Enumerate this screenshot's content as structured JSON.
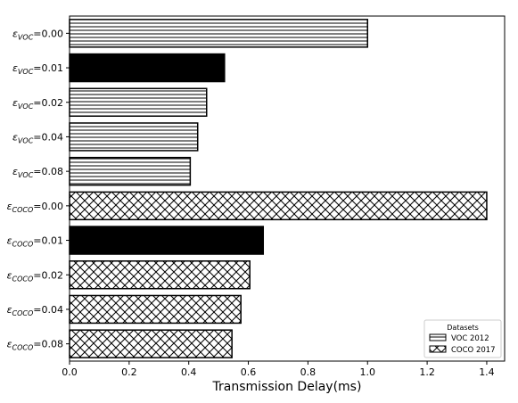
{
  "chart_data": {
    "type": "bar",
    "orientation": "horizontal",
    "categories": [
      {
        "base": "ε",
        "sub": "VOC",
        "value_text": "=0.00"
      },
      {
        "base": "ε",
        "sub": "VOC",
        "value_text": "=0.01"
      },
      {
        "base": "ε",
        "sub": "VOC",
        "value_text": "=0.02"
      },
      {
        "base": "ε",
        "sub": "VOC",
        "value_text": "=0.04"
      },
      {
        "base": "ε",
        "sub": "VOC",
        "value_text": "=0.08"
      },
      {
        "base": "ε",
        "sub": "COCO",
        "value_text": "=0.00"
      },
      {
        "base": "ε",
        "sub": "COCO",
        "value_text": "=0.01"
      },
      {
        "base": "ε",
        "sub": "COCO",
        "value_text": "=0.02"
      },
      {
        "base": "ε",
        "sub": "COCO",
        "value_text": "=0.04"
      },
      {
        "base": "ε",
        "sub": "COCO",
        "value_text": "=0.08"
      }
    ],
    "values": [
      1.0,
      0.52,
      0.46,
      0.43,
      0.405,
      1.4,
      0.65,
      0.605,
      0.575,
      0.545
    ],
    "bar_dataset": [
      "VOC 2012",
      "VOC 2012",
      "VOC 2012",
      "VOC 2012",
      "VOC 2012",
      "COCO 2017",
      "COCO 2017",
      "COCO 2017",
      "COCO 2017",
      "COCO 2017"
    ],
    "bar_fill": [
      "hatch",
      "solid",
      "hatch",
      "hatch",
      "hatch",
      "hatch",
      "solid",
      "hatch",
      "hatch",
      "hatch"
    ],
    "xlabel": "Transmission Delay(ms)",
    "ylabel": "",
    "title": "",
    "xlim": [
      0,
      1.46
    ],
    "xticks": [
      0.0,
      0.2,
      0.4,
      0.6,
      0.8,
      1.0,
      1.2,
      1.4
    ],
    "xtick_labels": [
      "0.0",
      "0.2",
      "0.4",
      "0.6",
      "0.8",
      "1.0",
      "1.2",
      "1.4"
    ],
    "grid": false,
    "legend": {
      "title": "Datasets",
      "placement": "bottom-right",
      "entries": [
        {
          "label": "VOC 2012",
          "pattern": "horizontal-lines"
        },
        {
          "label": "COCO 2017",
          "pattern": "cross-hatch"
        }
      ]
    },
    "colors": {
      "bar_edge": "#000000",
      "solid_fill": "#000000",
      "hatch_line": "#000000",
      "background": "#ffffff"
    }
  }
}
